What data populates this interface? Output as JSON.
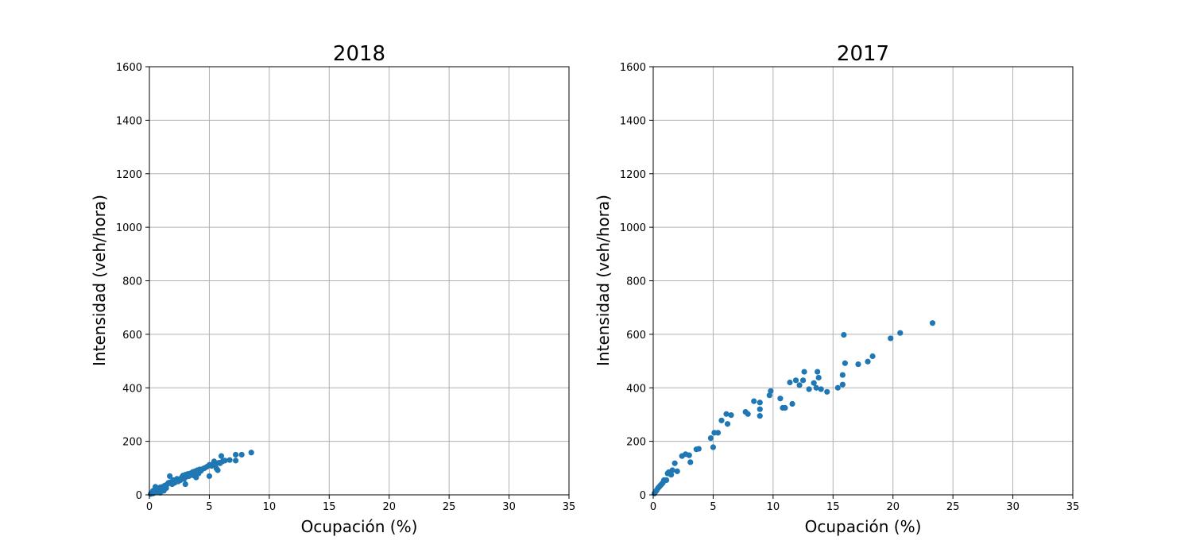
{
  "figure": {
    "background": "#ffffff"
  },
  "chart_data": [
    {
      "type": "scatter",
      "title": "2018",
      "xlabel": "Ocupación (%)",
      "ylabel": "Intensidad (veh/hora)",
      "xlim": [
        0,
        35
      ],
      "ylim": [
        0,
        1600
      ],
      "xticks": [
        "0",
        "5",
        "10",
        "15",
        "20",
        "25",
        "30",
        "35"
      ],
      "yticks": [
        "0",
        "200",
        "400",
        "600",
        "800",
        "1000",
        "1200",
        "1400",
        "1600"
      ],
      "grid": true,
      "marker_color": "#1f77b4",
      "series": [
        {
          "points": [
            [
              0.1,
              3
            ],
            [
              0.2,
              8
            ],
            [
              0.3,
              5
            ],
            [
              0.3,
              15
            ],
            [
              0.4,
              10
            ],
            [
              0.5,
              20
            ],
            [
              0.5,
              30
            ],
            [
              0.6,
              12
            ],
            [
              0.7,
              25
            ],
            [
              0.8,
              18
            ],
            [
              0.9,
              8
            ],
            [
              0.9,
              28
            ],
            [
              1.0,
              22
            ],
            [
              1.1,
              30
            ],
            [
              1.2,
              15
            ],
            [
              1.3,
              35
            ],
            [
              1.4,
              25
            ],
            [
              1.5,
              40
            ],
            [
              1.6,
              45
            ],
            [
              1.7,
              70
            ],
            [
              1.8,
              48
            ],
            [
              1.9,
              40
            ],
            [
              2.0,
              55
            ],
            [
              2.1,
              45
            ],
            [
              2.2,
              52
            ],
            [
              2.3,
              60
            ],
            [
              2.4,
              50
            ],
            [
              2.5,
              58
            ],
            [
              2.6,
              55
            ],
            [
              2.7,
              65
            ],
            [
              2.8,
              72
            ],
            [
              2.9,
              60
            ],
            [
              3.0,
              40
            ],
            [
              3.0,
              75
            ],
            [
              3.1,
              68
            ],
            [
              3.2,
              78
            ],
            [
              3.3,
              70
            ],
            [
              3.4,
              80
            ],
            [
              3.5,
              75
            ],
            [
              3.6,
              85
            ],
            [
              3.7,
              72
            ],
            [
              3.8,
              88
            ],
            [
              3.9,
              65
            ],
            [
              4.0,
              92
            ],
            [
              4.1,
              80
            ],
            [
              4.2,
              95
            ],
            [
              4.3,
              90
            ],
            [
              4.5,
              98
            ],
            [
              4.6,
              100
            ],
            [
              4.8,
              105
            ],
            [
              5.0,
              70
            ],
            [
              5.0,
              112
            ],
            [
              5.2,
              108
            ],
            [
              5.3,
              115
            ],
            [
              5.4,
              125
            ],
            [
              5.5,
              110
            ],
            [
              5.6,
              98
            ],
            [
              5.7,
              92
            ],
            [
              5.8,
              120
            ],
            [
              5.9,
              118
            ],
            [
              6.0,
              145
            ],
            [
              6.1,
              125
            ],
            [
              6.3,
              128
            ],
            [
              6.7,
              130
            ],
            [
              7.2,
              128
            ],
            [
              7.2,
              150
            ],
            [
              7.7,
              150
            ],
            [
              8.5,
              158
            ]
          ]
        }
      ]
    },
    {
      "type": "scatter",
      "title": "2017",
      "xlabel": "Ocupación (%)",
      "ylabel": "Intensidad (veh/hora)",
      "xlim": [
        0,
        35
      ],
      "ylim": [
        0,
        1600
      ],
      "xticks": [
        "0",
        "5",
        "10",
        "15",
        "20",
        "25",
        "30",
        "35"
      ],
      "yticks": [
        "0",
        "200",
        "400",
        "600",
        "800",
        "1000",
        "1200",
        "1400",
        "1600"
      ],
      "grid": true,
      "marker_color": "#1f77b4",
      "series": [
        {
          "points": [
            [
              0.1,
              5
            ],
            [
              0.2,
              12
            ],
            [
              0.3,
              18
            ],
            [
              0.4,
              25
            ],
            [
              0.5,
              30
            ],
            [
              0.6,
              35
            ],
            [
              0.7,
              40
            ],
            [
              0.8,
              45
            ],
            [
              0.9,
              55
            ],
            [
              1.1,
              55
            ],
            [
              1.2,
              80
            ],
            [
              1.3,
              85
            ],
            [
              1.5,
              75
            ],
            [
              1.6,
              92
            ],
            [
              1.8,
              118
            ],
            [
              2.0,
              88
            ],
            [
              2.4,
              145
            ],
            [
              2.7,
              152
            ],
            [
              3.0,
              148
            ],
            [
              3.1,
              122
            ],
            [
              3.6,
              170
            ],
            [
              3.8,
              172
            ],
            [
              4.8,
              212
            ],
            [
              5.0,
              178
            ],
            [
              5.1,
              232
            ],
            [
              5.4,
              232
            ],
            [
              5.7,
              278
            ],
            [
              6.1,
              302
            ],
            [
              6.2,
              265
            ],
            [
              6.5,
              298
            ],
            [
              7.7,
              310
            ],
            [
              7.9,
              302
            ],
            [
              8.4,
              350
            ],
            [
              8.9,
              345
            ],
            [
              8.9,
              320
            ],
            [
              8.9,
              295
            ],
            [
              9.7,
              372
            ],
            [
              9.8,
              388
            ],
            [
              10.6,
              360
            ],
            [
              10.8,
              325
            ],
            [
              11.0,
              325
            ],
            [
              11.4,
              420
            ],
            [
              11.6,
              340
            ],
            [
              11.9,
              428
            ],
            [
              12.2,
              410
            ],
            [
              12.5,
              428
            ],
            [
              12.6,
              460
            ],
            [
              13.0,
              395
            ],
            [
              13.4,
              418
            ],
            [
              13.6,
              400
            ],
            [
              13.7,
              460
            ],
            [
              13.8,
              438
            ],
            [
              14.0,
              395
            ],
            [
              14.5,
              385
            ],
            [
              15.4,
              400
            ],
            [
              15.8,
              448
            ],
            [
              15.8,
              412
            ],
            [
              15.9,
              598
            ],
            [
              16.0,
              492
            ],
            [
              17.1,
              488
            ],
            [
              17.9,
              498
            ],
            [
              18.3,
              518
            ],
            [
              19.8,
              585
            ],
            [
              20.6,
              605
            ],
            [
              23.3,
              642
            ]
          ]
        }
      ]
    }
  ]
}
